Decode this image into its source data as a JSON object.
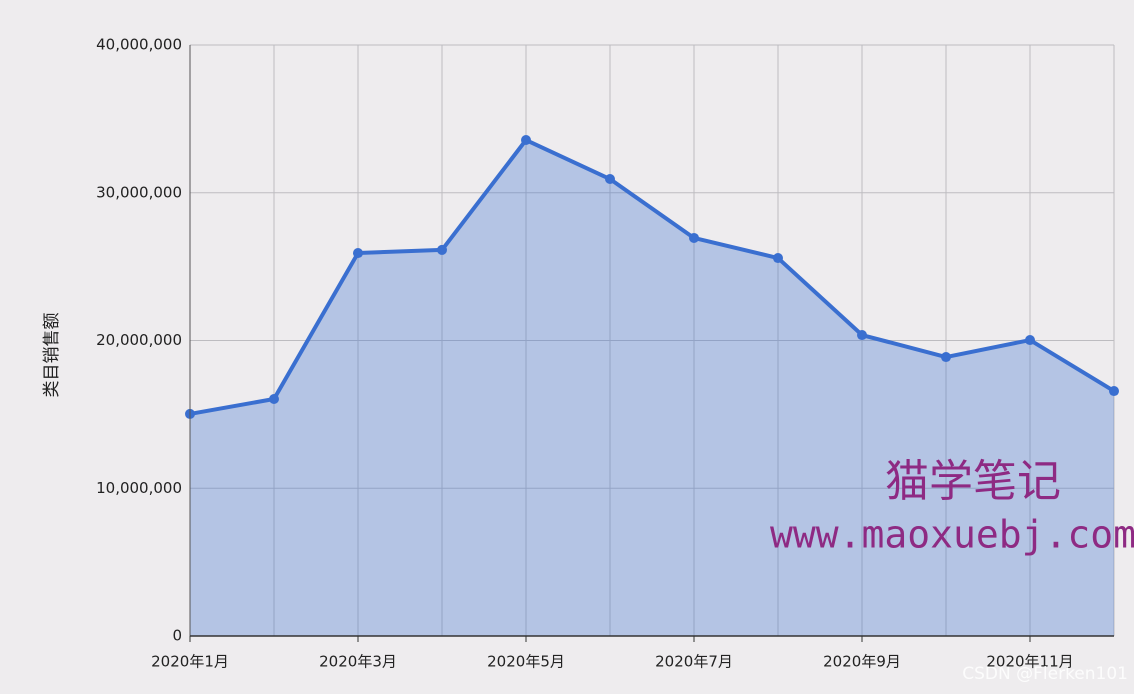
{
  "chart_data": {
    "type": "area",
    "y_label": "类目销售额",
    "categories": [
      "2020年1月",
      null,
      "2020年3月",
      null,
      "2020年5月",
      null,
      "2020年7月",
      null,
      "2020年9月",
      null,
      "2020年11月",
      null
    ],
    "series": [
      {
        "name": "类目销售额",
        "color": "#3a6fd0",
        "values": [
          15030000,
          16040000,
          25920000,
          26130000,
          33570000,
          30930000,
          26940000,
          25580000,
          20370000,
          18880000,
          20030000,
          16580000
        ]
      }
    ],
    "ylim": [
      0,
      40000000
    ],
    "yticks": [
      0,
      {
        "value": 10000000,
        "label": "10,000,000"
      },
      {
        "value": 20000000,
        "label": "20,000,000"
      },
      {
        "value": 30000000,
        "label": "30,000,000"
      },
      {
        "value": 40000000,
        "label": "40,000,000"
      }
    ],
    "grid": true
  },
  "watermarks": [
    "猫学笔记",
    "www.maoxuebj.com",
    "CSDN @Flerken101"
  ]
}
